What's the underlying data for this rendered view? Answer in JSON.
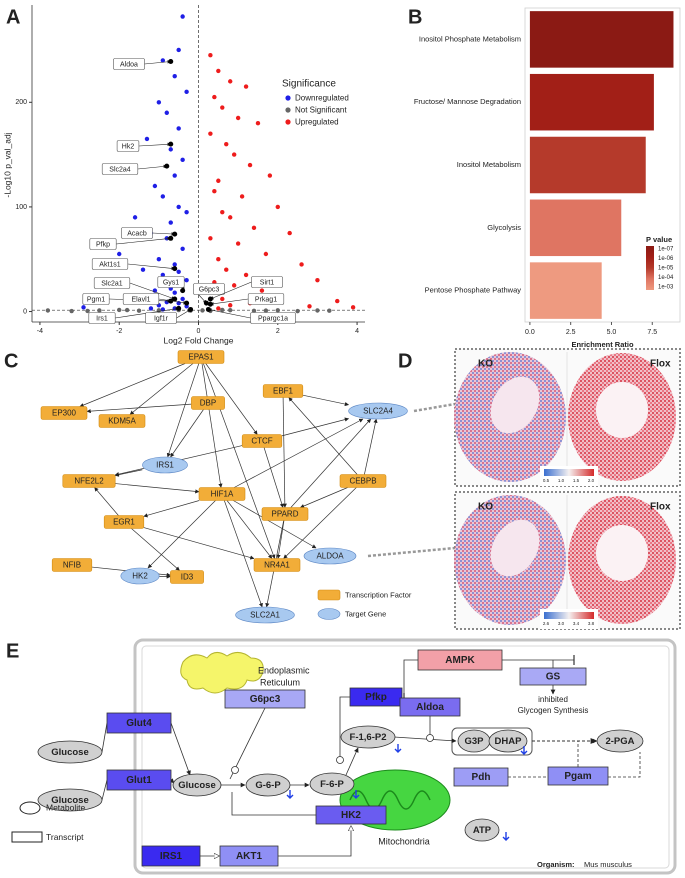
{
  "panel_letters": [
    "A",
    "B",
    "C",
    "D",
    "E"
  ],
  "chart_data": [
    {
      "type": "scatter",
      "xlabel": "Log2 Fold Change",
      "ylabel": "-Log10 p_val_adj",
      "xlim": [
        -4.2,
        4.2
      ],
      "ylim": [
        -10,
        293
      ],
      "xticks": [
        -4,
        -2,
        0,
        2,
        4
      ],
      "yticks": [
        0,
        100,
        200
      ],
      "vline": 0,
      "hline": 1.3,
      "legend_title": "Significance",
      "series": [
        {
          "name": "Downregulated",
          "color": "#1f1fe6",
          "x": [
            -0.4,
            -0.5,
            -0.9,
            -0.6,
            -0.3,
            -1.0,
            -0.8,
            -0.5,
            -1.3,
            -0.7,
            -0.4,
            -0.6,
            -1.1,
            -0.9,
            -0.5,
            -0.3,
            -1.6,
            -0.7,
            -1.2,
            -0.8,
            -0.4,
            -2.0,
            -1.0,
            -0.6,
            -1.4,
            -0.5,
            -0.9,
            -0.3,
            -1.8,
            -0.7,
            -1.1,
            -0.6,
            -2.4,
            -0.4,
            -1.5,
            -0.8,
            -0.5,
            -1.0,
            -0.3,
            -2.9,
            -0.6,
            -1.2,
            -0.9
          ],
          "values": [
            282,
            250,
            240,
            225,
            210,
            200,
            190,
            175,
            165,
            155,
            145,
            130,
            120,
            110,
            100,
            95,
            90,
            85,
            75,
            70,
            60,
            55,
            50,
            45,
            40,
            38,
            35,
            30,
            25,
            22,
            20,
            18,
            15,
            12,
            10,
            9,
            8,
            6,
            5,
            4,
            3,
            3,
            2
          ]
        },
        {
          "name": "Not Significant",
          "color": "#666666",
          "x": [
            -3.8,
            -3.2,
            -2.5,
            -2.0,
            -1.5,
            -1.0,
            -0.5,
            -0.2,
            0.1,
            0.3,
            0.8,
            1.4,
            2.0,
            2.5,
            3.0,
            3.3,
            -2.8,
            -1.8,
            0.6,
            1.7
          ],
          "values": [
            1,
            0.5,
            1,
            1.5,
            0.8,
            1.2,
            1.4,
            0.9,
            1.1,
            0.6,
            1.3,
            0.7,
            1.2,
            0.4,
            1,
            0.8,
            0.6,
            1.4,
            1.5,
            0.9
          ]
        },
        {
          "name": "Upregulated",
          "color": "#ee1c1c",
          "x": [
            0.3,
            0.5,
            0.8,
            1.2,
            0.4,
            0.6,
            1.0,
            1.5,
            0.3,
            0.7,
            0.9,
            1.3,
            1.8,
            0.5,
            0.4,
            1.1,
            2.0,
            0.6,
            0.8,
            1.4,
            2.3,
            0.3,
            1.0,
            1.7,
            0.5,
            2.6,
            0.7,
            1.2,
            3.0,
            0.4,
            0.9,
            1.6,
            2.1,
            0.6,
            3.5,
            1.3,
            0.8,
            2.8,
            3.9,
            0.5
          ],
          "values": [
            245,
            230,
            220,
            215,
            205,
            195,
            185,
            180,
            170,
            160,
            150,
            140,
            130,
            125,
            115,
            110,
            100,
            95,
            90,
            80,
            75,
            70,
            65,
            55,
            50,
            45,
            40,
            35,
            30,
            28,
            25,
            20,
            15,
            12,
            10,
            8,
            6,
            5,
            4,
            3
          ]
        }
      ],
      "annotations": [
        {
          "label": "Aldoa",
          "x": -0.7,
          "y": 239
        },
        {
          "label": "Hk2",
          "x": -0.7,
          "y": 160
        },
        {
          "label": "Slc2a4",
          "x": -0.8,
          "y": 139
        },
        {
          "label": "Acacb",
          "x": -0.6,
          "y": 74
        },
        {
          "label": "Pfkp",
          "x": -0.7,
          "y": 70
        },
        {
          "label": "Akt1s1",
          "x": -0.6,
          "y": 41
        },
        {
          "label": "Gys1",
          "x": -0.4,
          "y": 20
        },
        {
          "label": "Slc2a1",
          "x": -0.6,
          "y": 12
        },
        {
          "label": "Pgm1",
          "x": -0.7,
          "y": 10
        },
        {
          "label": "Elavl1",
          "x": -0.3,
          "y": 8
        },
        {
          "label": "Irs1",
          "x": -0.5,
          "y": 3
        },
        {
          "label": "Igf1r",
          "x": -0.2,
          "y": 2
        },
        {
          "label": "G6pc3",
          "x": 0.2,
          "y": 8
        },
        {
          "label": "Sirt1",
          "x": 0.3,
          "y": 12
        },
        {
          "label": "Prkag1",
          "x": 0.3,
          "y": 7
        },
        {
          "label": "Ppargc1a",
          "x": 0.25,
          "y": 2
        }
      ]
    },
    {
      "type": "barh",
      "xlabel": "Enrichment Ratio",
      "categories": [
        "Inositol Phosphate Metabolism",
        "Fructose/ Mannose Degradation",
        "Inositol Metabolism",
        "Glycolysis",
        "Pentose Phosphate Pathway"
      ],
      "values": [
        8.8,
        7.6,
        7.1,
        5.6,
        4.4
      ],
      "colors": [
        "#8b1a14",
        "#a21f17",
        "#b53a2b",
        "#df7562",
        "#ee9a80"
      ],
      "xlim": [
        -0.3,
        9.2
      ],
      "xticks": [
        {
          "value": 0,
          "label": "0.0"
        },
        {
          "value": 2.5,
          "label": "2.5"
        },
        {
          "value": 5,
          "label": "5.0"
        },
        {
          "value": 7.5,
          "label": "7.5"
        }
      ],
      "legend_title": "P value",
      "legend_labels": [
        "1e-07",
        "1e-06",
        "1e-05",
        "1e-04",
        "1e-03"
      ]
    }
  ],
  "panel_c": {
    "nodes": [
      {
        "label": "EPAS1",
        "kind": "factor"
      },
      {
        "label": "EBF1",
        "kind": "factor"
      },
      {
        "label": "DBP",
        "kind": "factor"
      },
      {
        "label": "EP300",
        "kind": "factor"
      },
      {
        "label": "KDM5A",
        "kind": "factor"
      },
      {
        "label": "CTCF",
        "kind": "factor"
      },
      {
        "label": "NFE2L2",
        "kind": "factor"
      },
      {
        "label": "HIF1A",
        "kind": "factor"
      },
      {
        "label": "CEBPB",
        "kind": "factor"
      },
      {
        "label": "PPARD",
        "kind": "factor"
      },
      {
        "label": "EGR1",
        "kind": "factor"
      },
      {
        "label": "NFIB",
        "kind": "factor"
      },
      {
        "label": "NR4A1",
        "kind": "factor"
      },
      {
        "label": "ID3",
        "kind": "factor"
      },
      {
        "label": "SLC2A4",
        "kind": "target"
      },
      {
        "label": "IRS1",
        "kind": "target"
      },
      {
        "label": "ALDOA",
        "kind": "target"
      },
      {
        "label": "HK2",
        "kind": "target"
      },
      {
        "label": "SLC2A1",
        "kind": "target"
      }
    ],
    "legend": [
      "Transcription Factor",
      "Target Gene"
    ]
  },
  "panel_d": {
    "top": {
      "left": "KO",
      "right": "Flox",
      "colorbar": [
        "0.5",
        "1.0",
        "1.5",
        "2.0"
      ]
    },
    "bottom": {
      "left": "KO",
      "right": "Flox",
      "colorbar": [
        "2.6",
        "3.0",
        "3.4",
        "3.8"
      ]
    }
  },
  "panel_e": {
    "transcripts": [
      "AMPK",
      "GS",
      "G6pc3",
      "Pfkp",
      "Aldoa",
      "Glut4",
      "Glut1",
      "Pgam",
      "Pdh",
      "HK2",
      "IRS1",
      "AKT1"
    ],
    "metabolites": [
      "Glucose",
      "Glucose",
      "Glucose",
      "G-6-P",
      "F-6-P",
      "F-1,6-P2",
      "G3P",
      "DHAP",
      "2-PGA",
      "ATP"
    ],
    "er": [
      "Endoplasmic",
      "Reticulum"
    ],
    "gs_note": [
      "inhibited",
      "Glycogen Synthesis"
    ],
    "mitochondria": "Mitochondria",
    "legend": [
      "Metabolite",
      "Transcript"
    ],
    "organism_label": "Organism:",
    "organism": "Mus musculus"
  }
}
